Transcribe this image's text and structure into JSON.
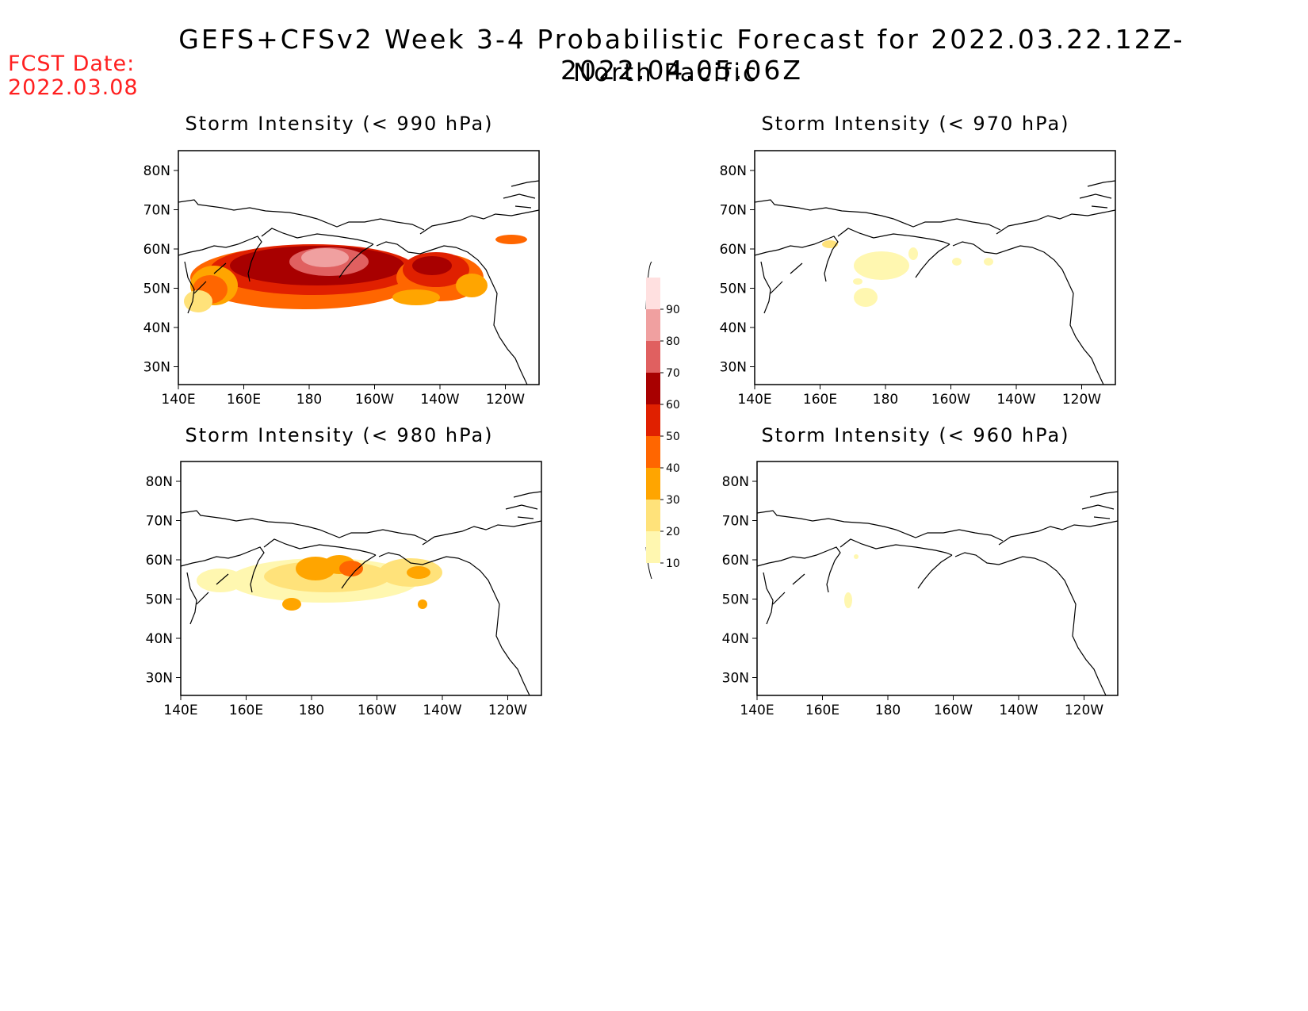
{
  "header": {
    "title": "GEFS+CFSv2 Week 3-4 Probabilistic Forecast for 2022.03.22.12Z-2022.04.05.06Z",
    "subtitle": "North Pacific",
    "fcst_label": "FCST Date:",
    "fcst_date": "2022.03.08"
  },
  "colors": {
    "c10": "#fff7b0",
    "c20": "#ffe27a",
    "c30": "#ffa500",
    "c40": "#ff6600",
    "c50": "#e02000",
    "c60": "#a80000",
    "c70": "#e06060",
    "c80": "#f0a0a0",
    "c90": "#ffe0e0",
    "coast": "#000000"
  },
  "colorbar": {
    "levels": [
      "10",
      "20",
      "30",
      "40",
      "50",
      "60",
      "70",
      "80",
      "90"
    ]
  },
  "axes": {
    "lat_ticks": [
      "80N",
      "70N",
      "60N",
      "50N",
      "40N",
      "30N"
    ],
    "lon_ticks": [
      "140E",
      "160E",
      "180",
      "160W",
      "140W",
      "120W"
    ]
  },
  "panels": [
    {
      "id": "p990",
      "title": "Storm Intensity (< 990 hPa)",
      "level": "high"
    },
    {
      "id": "p970",
      "title": "Storm Intensity (< 970 hPa)",
      "level": "low"
    },
    {
      "id": "p980",
      "title": "Storm Intensity (< 980 hPa)",
      "level": "mid"
    },
    {
      "id": "p960",
      "title": "Storm Intensity (< 960 hPa)",
      "level": "min"
    }
  ]
}
